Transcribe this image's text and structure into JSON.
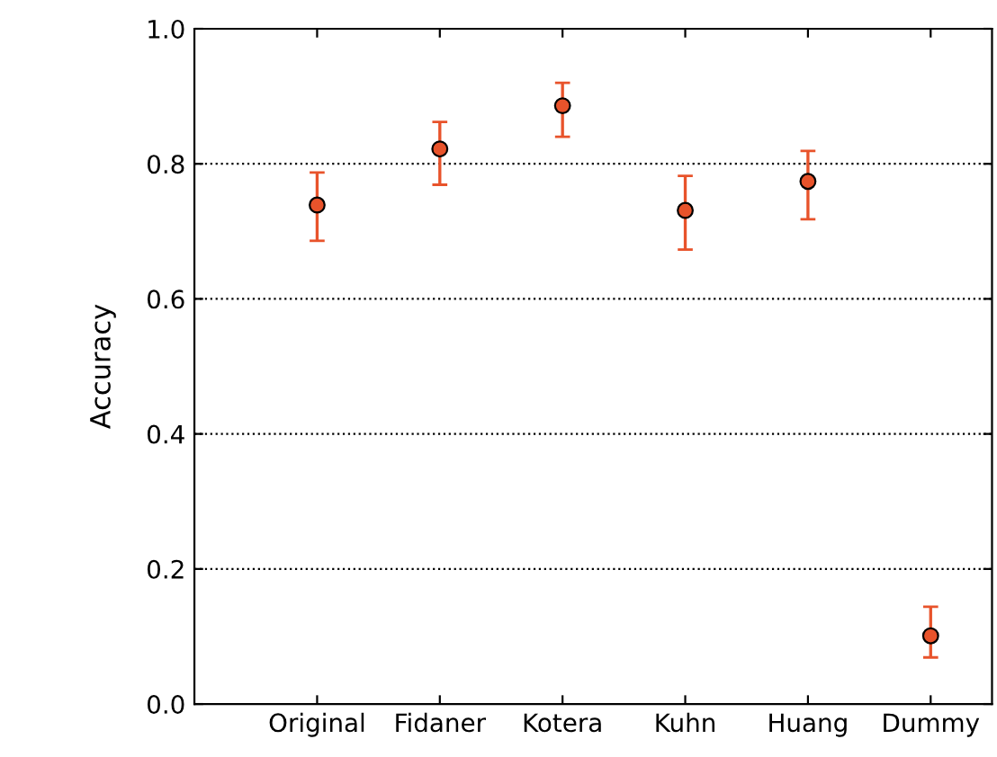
{
  "chart_data": {
    "type": "scatter",
    "ylabel": "Accuracy",
    "categories": [
      "Original",
      "Fidaner",
      "Kotera",
      "Kuhn",
      "Huang",
      "Dummy"
    ],
    "series": [
      {
        "color": "#e8532b",
        "values": [
          0.739,
          0.822,
          0.886,
          0.731,
          0.774,
          0.101
        ],
        "errors": [
          [
            0.686,
            0.787
          ],
          [
            0.769,
            0.862
          ],
          [
            0.84,
            0.92
          ],
          [
            0.673,
            0.782
          ],
          [
            0.718,
            0.819
          ],
          [
            0.069,
            0.144
          ]
        ]
      }
    ],
    "ylim": [
      0,
      1.0
    ],
    "yticks": [
      {
        "value": 0,
        "label": "0.0"
      },
      0.2,
      0.4,
      0.6,
      0.8,
      {
        "value": 1.0,
        "label": "1.0"
      }
    ],
    "grid": "y",
    "marker": "circle"
  }
}
